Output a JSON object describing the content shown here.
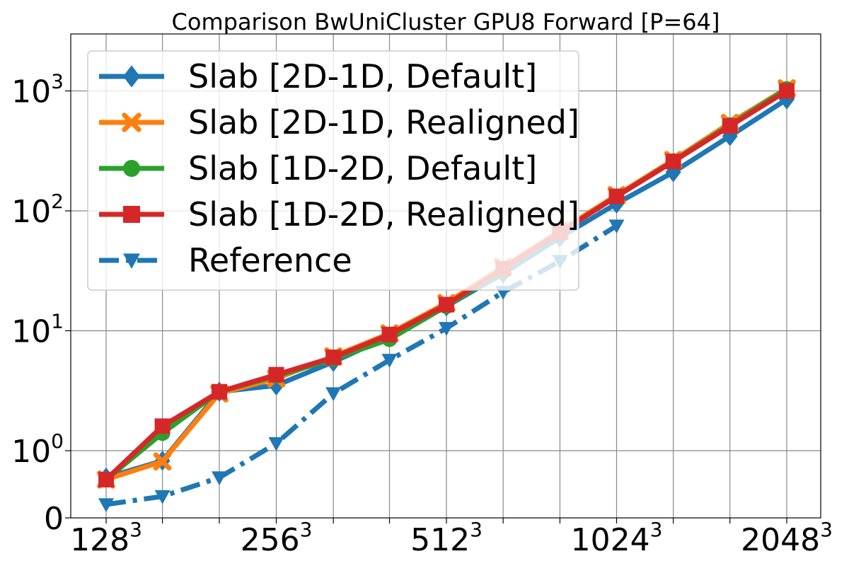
{
  "chart_data": {
    "type": "line",
    "title": "Comparison BwUniCluster GPU8 Forward [P=64]",
    "xlabel": "",
    "ylabel": "",
    "y_scale": "symlog",
    "grid": true,
    "legend_position": "top-left",
    "x": [
      128,
      161,
      203,
      256,
      323,
      406,
      512,
      645,
      813,
      1024,
      1290,
      1625,
      2048
    ],
    "x_ticks": [
      {
        "value": 128,
        "base": "128",
        "exp": "3"
      },
      {
        "value": 256,
        "base": "256",
        "exp": "3"
      },
      {
        "value": 512,
        "base": "512",
        "exp": "3"
      },
      {
        "value": 1024,
        "base": "1024",
        "exp": "3"
      },
      {
        "value": 2048,
        "base": "2048",
        "exp": "3"
      }
    ],
    "y_ticks": [
      {
        "value": 0,
        "base": "0",
        "exp": ""
      },
      {
        "value": 1,
        "base": "10",
        "exp": "0"
      },
      {
        "value": 10,
        "base": "10",
        "exp": "1"
      },
      {
        "value": 100,
        "base": "10",
        "exp": "2"
      },
      {
        "value": 1000,
        "base": "10",
        "exp": "3"
      }
    ],
    "series": [
      {
        "name": "Slab [2D-1D, Default]",
        "color": "#1f77b4",
        "marker": "diamond",
        "dash": "solid",
        "values": [
          0.6,
          0.85,
          3.1,
          3.5,
          5.5,
          9.0,
          16.0,
          30.0,
          60.0,
          115.0,
          210.0,
          420.0,
          850.0
        ]
      },
      {
        "name": "Slab [2D-1D, Realigned]",
        "color": "#ff7f0e",
        "marker": "x",
        "dash": "solid",
        "values": [
          0.57,
          0.84,
          3.0,
          4.0,
          6.1,
          9.5,
          17.0,
          34.0,
          68.0,
          135.0,
          265.0,
          540.0,
          1050.0
        ]
      },
      {
        "name": "Slab [1D-2D, Default]",
        "color": "#2ca02c",
        "marker": "circle",
        "dash": "solid",
        "values": [
          0.57,
          1.4,
          3.1,
          4.2,
          5.8,
          8.5,
          16.0,
          32.0,
          66.0,
          132.0,
          260.0,
          520.0,
          1040.0
        ]
      },
      {
        "name": "Slab [1D-2D, Realigned]",
        "color": "#d62728",
        "marker": "square",
        "dash": "solid",
        "values": [
          0.57,
          1.6,
          3.1,
          4.3,
          6.0,
          9.3,
          16.5,
          33.0,
          66.0,
          132.0,
          258.0,
          510.0,
          1000.0
        ]
      },
      {
        "name": "Reference",
        "color": "#1f77b4",
        "marker": "triangle-down",
        "dash": "dashdot",
        "values": [
          0.2,
          0.32,
          0.6,
          1.15,
          3.0,
          5.7,
          10.5,
          21.0,
          38.0,
          75.0,
          null,
          null,
          null
        ]
      }
    ]
  }
}
